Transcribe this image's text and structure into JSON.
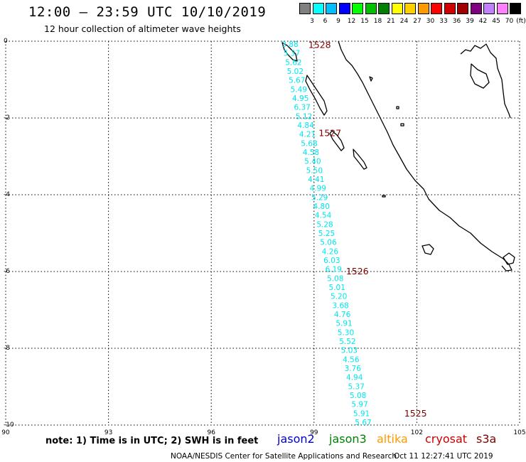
{
  "title": "12:00 – 23:59 UTC 10/10/2019",
  "subtitle": "12 hour collection of altimeter wave heights",
  "legend": {
    "unit": "(ft)",
    "colors": [
      "#808080",
      "#00ffff",
      "#00bfff",
      "#0000ff",
      "#00ff00",
      "#00c000",
      "#008000",
      "#ffff00",
      "#ffd000",
      "#ff9900",
      "#ff0000",
      "#d00000",
      "#a00000",
      "#800080",
      "#c080ff",
      "#ff80ff",
      "#000000"
    ],
    "labels": [
      "3",
      "6",
      "9",
      "12",
      "15",
      "18",
      "21",
      "24",
      "27",
      "30",
      "33",
      "36",
      "39",
      "42",
      "45",
      "70"
    ]
  },
  "axes": {
    "x_ticks": [
      "90",
      "93",
      "96",
      "99",
      "102",
      "105"
    ],
    "y_ticks": [
      "0",
      "-2",
      "-4",
      "-6",
      "-8",
      "-10"
    ],
    "xlim": [
      90,
      105
    ],
    "ylim": [
      -10,
      0
    ]
  },
  "track": {
    "color": "#00e5ee",
    "values": [
      "3.88",
      "5.37",
      "5.62",
      "5.02",
      "5.67",
      "5.49",
      "4.95",
      "6.37",
      "5.12",
      "4.84",
      "4.21",
      "5.68",
      "4.58",
      "5.40",
      "5.50",
      "4.41",
      "4.99",
      "5.29",
      "4.80",
      "4.54",
      "5.28",
      "5.25",
      "5.06",
      "4.26",
      "6.03",
      "6.19",
      "5.08",
      "5.01",
      "5.20",
      "3.68",
      "4.76",
      "5.91",
      "5.30",
      "5.52",
      "5.03",
      "4.56",
      "3.76",
      "4.94",
      "5.37",
      "5.08",
      "5.97",
      "5.91",
      "5.67"
    ]
  },
  "times": [
    {
      "label": "1528",
      "lon": 99.0,
      "lat": -0.1
    },
    {
      "label": "1527",
      "lon": 99.3,
      "lat": -2.4
    },
    {
      "label": "1526",
      "lon": 100.1,
      "lat": -6.0
    },
    {
      "label": "1525",
      "lon": 101.8,
      "lat": -9.7
    }
  ],
  "time_color": "#800000",
  "note": "note: 1) Time is in UTC; 2) SWH is in feet",
  "satellites": [
    {
      "name": "jason2",
      "color": "#0000cc"
    },
    {
      "name": "jason3",
      "color": "#008000"
    },
    {
      "name": "altika",
      "color": "#ff9900"
    },
    {
      "name": "cryosat",
      "color": "#cc0000"
    },
    {
      "name": "s3a",
      "color": "#800000"
    }
  ],
  "credit_left": "NOAA/NESDIS Center for Satellite Applications and Research",
  "credit_right": "Oct 11 12:27:41 UTC 2019"
}
